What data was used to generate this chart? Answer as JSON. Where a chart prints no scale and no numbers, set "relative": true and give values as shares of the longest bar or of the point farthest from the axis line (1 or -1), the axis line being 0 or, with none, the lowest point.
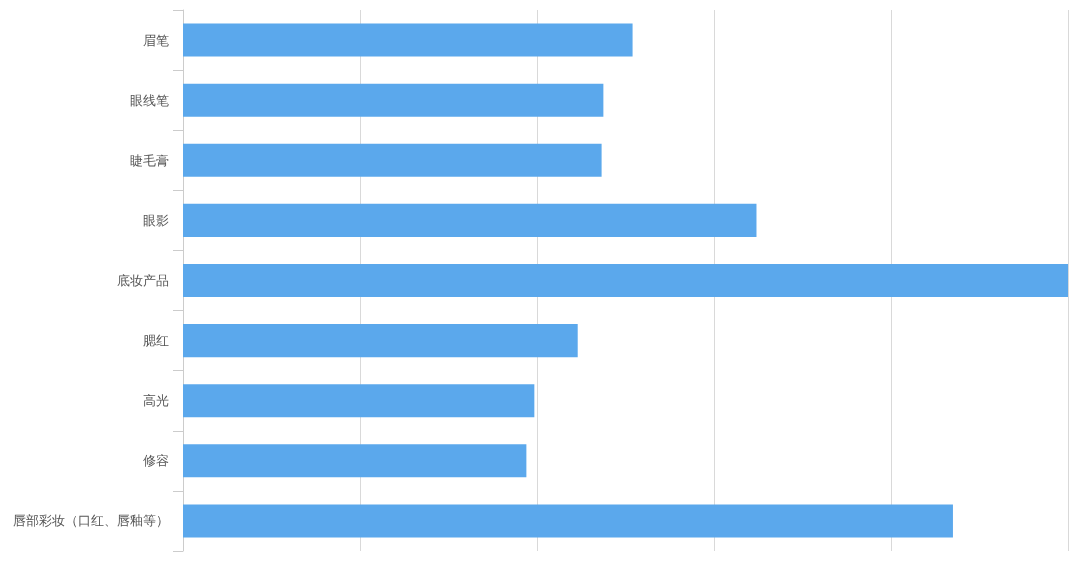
{
  "chart_data": {
    "type": "bar",
    "orientation": "horizontal",
    "relative": true,
    "grid": "x",
    "categories": [
      "眉笔",
      "眼线笔",
      "睫毛膏",
      "眼影",
      "底妆产品",
      "腮红",
      "高光",
      "修容",
      "唇部彩妆（口红、唇釉等）"
    ],
    "values": [
      0.508,
      0.475,
      0.473,
      0.648,
      1,
      0.446,
      0.397,
      0.388,
      0.87
    ],
    "color": "#5ba8ec"
  }
}
